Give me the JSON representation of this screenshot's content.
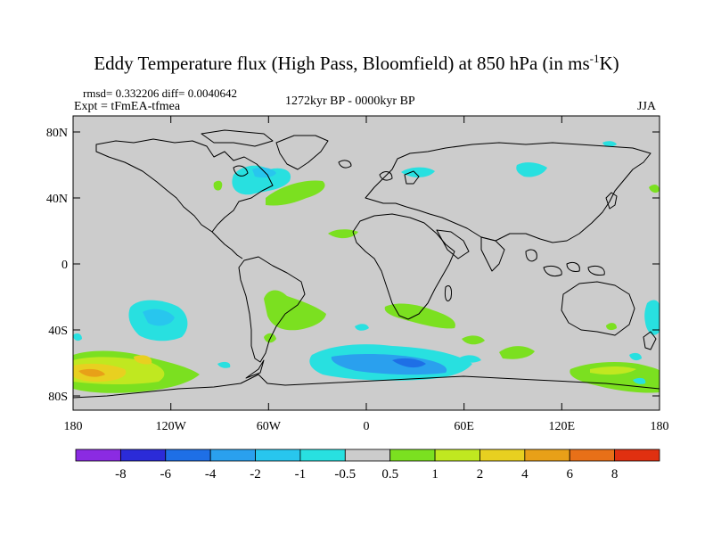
{
  "title": {
    "main": "Eddy Temperature flux (High Pass, Bloomfield) at 850 hPa (in ms",
    "sup": "-1",
    "end": "K)"
  },
  "stats": "rmsd= 0.332206 diff= 0.0040642",
  "experiment": "Expt = tFmEA-tfmea",
  "period": "1272kyr BP - 0000kyr BP",
  "season": "JJA",
  "axes": {
    "y_ticks": [
      "80N",
      "40N",
      "0",
      "40S",
      "80S"
    ],
    "x_ticks": [
      "180",
      "120W",
      "60W",
      "0",
      "60E",
      "120E",
      "180"
    ]
  },
  "colorbar": {
    "colors": [
      "#8b2be2",
      "#2b2bd8",
      "#1e6fe6",
      "#2aa0ee",
      "#28c6ee",
      "#28e0e0",
      "#cccccc",
      "#7be020",
      "#c0e820",
      "#e8d020",
      "#e8a018",
      "#e87018",
      "#e03010"
    ],
    "labels": [
      "-8",
      "-6",
      "-4",
      "-2",
      "-1",
      "-0.5",
      "0.5",
      "1",
      "2",
      "4",
      "6",
      "8"
    ]
  },
  "chart_data": {
    "type": "heatmap",
    "projection": "cylindrical equidistant",
    "title": "Eddy Temperature flux (High Pass, Bloomfield) at 850 hPa (in ms-1K)",
    "lon_range": [
      -180,
      180
    ],
    "lat_range": [
      -90,
      90
    ],
    "background_value_range": [
      -0.5,
      0.5
    ],
    "anomaly_regions": [
      {
        "name": "north-atlantic-negative",
        "lon": [
          -90,
          -45
        ],
        "lat": [
          40,
          60
        ],
        "level": "-1 to -0.5"
      },
      {
        "name": "midatlantic-positive",
        "lon": [
          -60,
          -25
        ],
        "lat": [
          30,
          45
        ],
        "level": "0.5 to 1"
      },
      {
        "name": "eurasia-negative",
        "lon": [
          20,
          45
        ],
        "lat": [
          50,
          58
        ],
        "level": "-1 to -0.5"
      },
      {
        "name": "south-atlantic-positive",
        "lon": [
          -40,
          -10
        ],
        "lat": [
          -50,
          -35
        ],
        "level": "0.5 to 1"
      },
      {
        "name": "south-pacific-negative",
        "lon": [
          -170,
          -130
        ],
        "lat": [
          -55,
          -30
        ],
        "level": "-1 to -0.5"
      },
      {
        "name": "southern-ocean-negative",
        "lon": [
          -35,
          60
        ],
        "lat": [
          -80,
          -55
        ],
        "level": "-2 to -0.5"
      },
      {
        "name": "south-pacific-positive",
        "lon": [
          -180,
          -110
        ],
        "lat": [
          -80,
          -55
        ],
        "level": "0.5 to 4"
      },
      {
        "name": "tasman-positive",
        "lon": [
          130,
          180
        ],
        "lat": [
          -78,
          -60
        ],
        "level": "0.5 to 2"
      },
      {
        "name": "southern-africa-positive",
        "lon": [
          15,
          60
        ],
        "lat": [
          -45,
          -30
        ],
        "level": "0.5 to 1"
      }
    ]
  }
}
